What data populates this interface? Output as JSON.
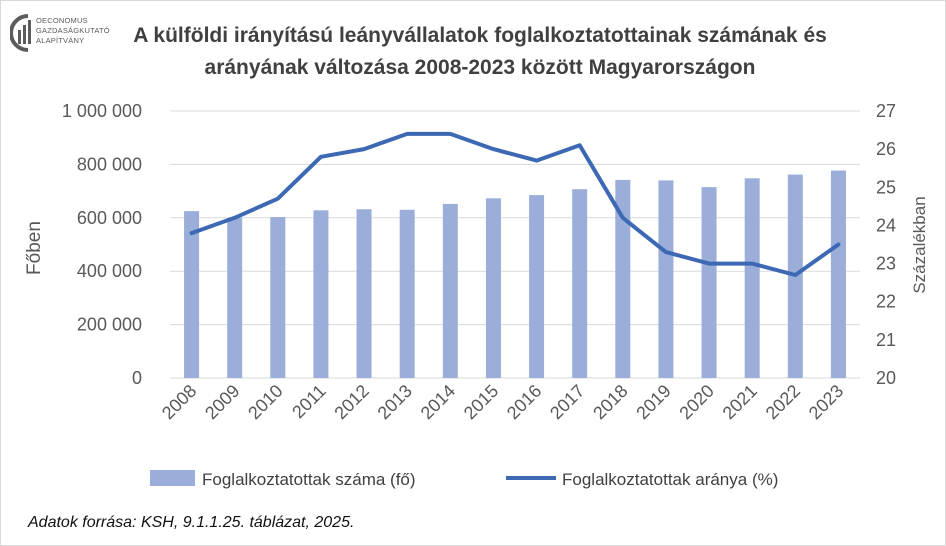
{
  "logo": {
    "line1": "OECONOMUS",
    "line2": "GAZDASÁGKUTATÓ",
    "line3": "ALAPÍTVÁNY"
  },
  "title_line1": "A külföldi irányítású leányvállalatok foglalkoztatottainak számának és",
  "title_line2": "arányának változása 2008-2023 között Magyarországon",
  "source": "Adatok forrása: KSH, 9.1.1.25. táblázat, 2025.",
  "colors": {
    "bar": "#9aaed9",
    "line": "#3d68b3",
    "grid": "#d9d9d9",
    "text": "#595959"
  },
  "chart_data": {
    "type": "bar+line",
    "categories": [
      "2008",
      "2009",
      "2010",
      "2011",
      "2012",
      "2013",
      "2014",
      "2015",
      "2016",
      "2017",
      "2018",
      "2019",
      "2020",
      "2021",
      "2022",
      "2023"
    ],
    "series": [
      {
        "name": "Foglalkoztatottak száma (fő)",
        "type": "bar",
        "axis": "left",
        "values": [
          625000,
          600000,
          603000,
          628000,
          632000,
          630000,
          652000,
          673000,
          685000,
          707000,
          742000,
          740000,
          715000,
          748000,
          762000,
          777000
        ]
      },
      {
        "name": "Foglalkoztatottak aránya (%)",
        "type": "line",
        "axis": "right",
        "values": [
          23.8,
          24.2,
          24.7,
          25.8,
          26.0,
          26.4,
          26.4,
          26.0,
          25.7,
          26.1,
          24.2,
          23.3,
          23.0,
          23.0,
          22.7,
          23.5
        ]
      }
    ],
    "ylabel": "Főben",
    "y2label": "Százalékban",
    "ylim": [
      0,
      1000000
    ],
    "y2lim": [
      20,
      27
    ],
    "yticks": [
      "0",
      "200 000",
      "400 000",
      "600 000",
      "800 000",
      "1 000 000"
    ],
    "y2ticks": [
      "20",
      "21",
      "22",
      "23",
      "24",
      "25",
      "26",
      "27"
    ],
    "grid": true,
    "legend": "bottom"
  }
}
